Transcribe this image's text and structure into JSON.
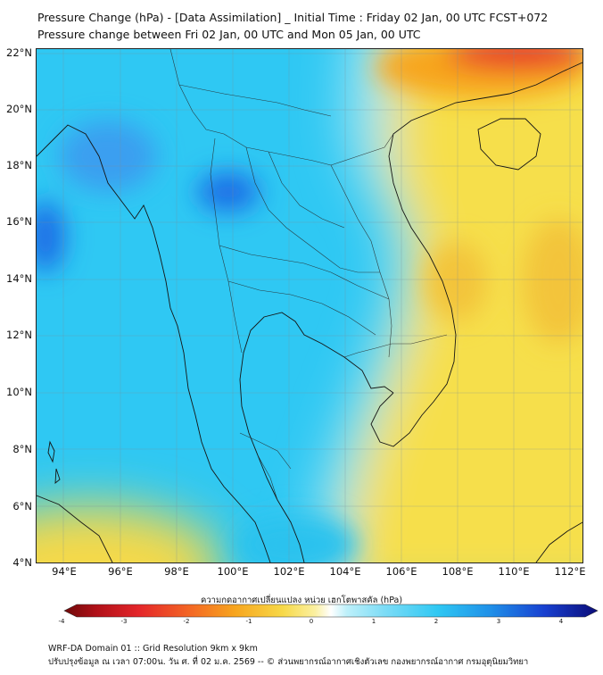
{
  "header": {
    "title": "Pressure Change (hPa) - [Data Assimilation] _ Initial Time : Friday 02 Jan, 00 UTC FCST+072",
    "subtitle": "Pressure change between Fri 02 Jan, 00 UTC and Mon 05 Jan, 00 UTC"
  },
  "map": {
    "lat_labels": [
      "22°N",
      "20°N",
      "18°N",
      "16°N",
      "14°N",
      "12°N",
      "10°N",
      "8°N",
      "6°N",
      "4°N"
    ],
    "lon_labels": [
      "94°E",
      "96°E",
      "98°E",
      "100°E",
      "102°E",
      "104°E",
      "106°E",
      "108°E",
      "110°E",
      "112°E"
    ],
    "extent": {
      "lon_min": 93.0,
      "lon_max": 112.5,
      "lat_min": 4.0,
      "lat_max": 22.2
    }
  },
  "colorbar": {
    "title": "ความกดอากาศเปลี่ยนแปลง หน่วย เฮกโตพาสคัล (hPa)",
    "ticks": [
      "-4",
      "-3",
      "-2",
      "-1",
      "0",
      "1",
      "2",
      "3",
      "4"
    ],
    "range": [
      -4,
      4
    ]
  },
  "footer": {
    "line1": "WRF-DA Domain 01 :: Grid Resolution 9km x 9km",
    "line2": "ปรับปรุงข้อมูล ณ เวลา 07:00น. วัน ศ. ที่ 02 ม.ค. 2569 -- © ส่วนพยากรณ์อากาศเชิงตัวเลข กองพยากรณ์อากาศ กรมอุตุนิยมวิทยา"
  },
  "colors": {
    "positive_high": "#1d4fd8",
    "positive_mid": "#1ec4f2",
    "positive_low": "#8fe3f8",
    "neutral": "#ffffff",
    "negative_low": "#f9e65a",
    "negative_mid": "#f7b820",
    "negative_high": "#e3262a"
  }
}
